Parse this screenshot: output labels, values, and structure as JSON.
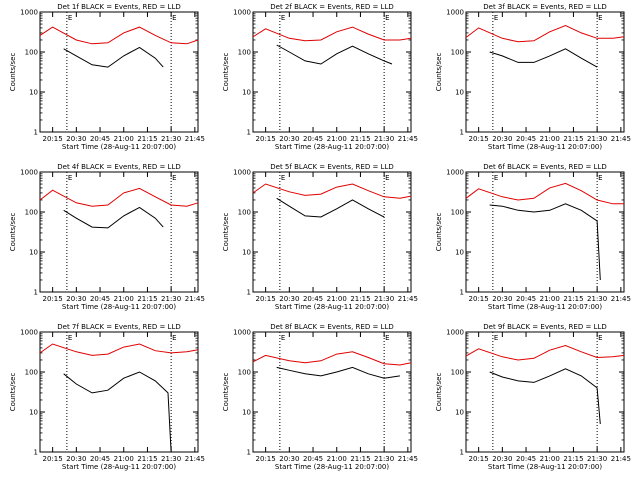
{
  "ylabel": "Counts/sec",
  "xlabel": "Start Time (28-Aug-11 20:07:00)",
  "x_ticks": [
    "20:15",
    "20:30",
    "20:45",
    "21:00",
    "21:15",
    "21:30",
    "21:45"
  ],
  "y_ticks": [
    "1",
    "10",
    "100",
    "1000"
  ],
  "marker_labels": [
    "E",
    "E"
  ],
  "colors": {
    "events": "#000000",
    "lld": "#e00000"
  },
  "chart_data": [
    {
      "type": "line",
      "title": "Det 1f BLACK = Events, RED = LLD",
      "xlim": [
        "20:07",
        "21:47"
      ],
      "ylim": [
        1,
        1000
      ],
      "yscale": "log",
      "vlines": [
        "20:24",
        "21:30"
      ],
      "series": [
        {
          "name": "Events",
          "x": [
            "20:22",
            "20:30",
            "20:40",
            "20:50",
            "21:00",
            "21:10",
            "21:20",
            "21:25"
          ],
          "values": [
            120,
            80,
            48,
            42,
            80,
            130,
            70,
            42
          ]
        },
        {
          "name": "LLD",
          "x": [
            "20:07",
            "20:15",
            "20:30",
            "20:40",
            "20:50",
            "21:00",
            "21:10",
            "21:20",
            "21:30",
            "21:40",
            "21:47"
          ],
          "values": [
            260,
            420,
            200,
            160,
            170,
            300,
            420,
            260,
            170,
            160,
            200
          ]
        }
      ]
    },
    {
      "type": "line",
      "title": "Det 2f BLACK = Events, RED = LLD",
      "xlim": [
        "20:07",
        "21:47"
      ],
      "ylim": [
        1,
        1000
      ],
      "yscale": "log",
      "vlines": [
        "20:24",
        "21:30"
      ],
      "series": [
        {
          "name": "Events",
          "x": [
            "20:22",
            "20:30",
            "20:40",
            "20:50",
            "21:00",
            "21:10",
            "21:20",
            "21:30",
            "21:35"
          ],
          "values": [
            150,
            100,
            60,
            50,
            90,
            140,
            90,
            60,
            50
          ]
        },
        {
          "name": "LLD",
          "x": [
            "20:07",
            "20:15",
            "20:30",
            "20:40",
            "20:50",
            "21:00",
            "21:10",
            "21:20",
            "21:30",
            "21:40",
            "21:47"
          ],
          "values": [
            240,
            380,
            220,
            190,
            200,
            320,
            420,
            280,
            200,
            200,
            220
          ]
        }
      ]
    },
    {
      "type": "line",
      "title": "Det 3f BLACK = Events, RED = LLD",
      "xlim": [
        "20:07",
        "21:47"
      ],
      "ylim": [
        1,
        1000
      ],
      "yscale": "log",
      "vlines": [
        "20:24",
        "21:30"
      ],
      "series": [
        {
          "name": "Events",
          "x": [
            "20:22",
            "20:30",
            "20:40",
            "20:50",
            "21:00",
            "21:10",
            "21:20",
            "21:30"
          ],
          "values": [
            100,
            80,
            55,
            55,
            80,
            120,
            70,
            42
          ]
        },
        {
          "name": "LLD",
          "x": [
            "20:07",
            "20:15",
            "20:30",
            "20:40",
            "20:50",
            "21:00",
            "21:10",
            "21:20",
            "21:30",
            "21:40",
            "21:47"
          ],
          "values": [
            230,
            400,
            220,
            180,
            190,
            320,
            460,
            300,
            220,
            220,
            240
          ]
        }
      ]
    },
    {
      "type": "line",
      "title": "Det 4f BLACK = Events, RED = LLD",
      "xlim": [
        "20:07",
        "21:47"
      ],
      "ylim": [
        1,
        1000
      ],
      "yscale": "log",
      "vlines": [
        "20:24",
        "21:30"
      ],
      "series": [
        {
          "name": "Events",
          "x": [
            "20:22",
            "20:30",
            "20:40",
            "20:50",
            "21:00",
            "21:10",
            "21:20",
            "21:25"
          ],
          "values": [
            110,
            70,
            42,
            40,
            80,
            130,
            70,
            42
          ]
        },
        {
          "name": "LLD",
          "x": [
            "20:07",
            "20:15",
            "20:30",
            "20:40",
            "20:50",
            "21:00",
            "21:10",
            "21:20",
            "21:30",
            "21:40",
            "21:47"
          ],
          "values": [
            200,
            350,
            170,
            140,
            150,
            300,
            390,
            240,
            150,
            140,
            170
          ]
        }
      ]
    },
    {
      "type": "line",
      "title": "Det 5f BLACK = Events, RED = LLD",
      "xlim": [
        "20:07",
        "21:47"
      ],
      "ylim": [
        1,
        1000
      ],
      "yscale": "log",
      "vlines": [
        "20:24",
        "21:30"
      ],
      "series": [
        {
          "name": "Events",
          "x": [
            "20:22",
            "20:30",
            "20:40",
            "20:50",
            "21:00",
            "21:10",
            "21:20",
            "21:30"
          ],
          "values": [
            220,
            140,
            80,
            75,
            120,
            200,
            120,
            75
          ]
        },
        {
          "name": "LLD",
          "x": [
            "20:07",
            "20:15",
            "20:30",
            "20:40",
            "20:50",
            "21:00",
            "21:10",
            "21:20",
            "21:30",
            "21:40",
            "21:47"
          ],
          "values": [
            300,
            500,
            320,
            260,
            280,
            420,
            500,
            340,
            240,
            220,
            250
          ]
        }
      ]
    },
    {
      "type": "line",
      "title": "Det 6f BLACK = Events, RED = LLD",
      "xlim": [
        "20:07",
        "21:47"
      ],
      "ylim": [
        1,
        1000
      ],
      "yscale": "log",
      "vlines": [
        "20:24",
        "21:30"
      ],
      "series": [
        {
          "name": "Events",
          "x": [
            "20:22",
            "20:30",
            "20:40",
            "20:50",
            "21:00",
            "21:10",
            "21:20",
            "21:30",
            "21:32"
          ],
          "values": [
            150,
            140,
            110,
            100,
            110,
            160,
            110,
            60,
            2
          ]
        },
        {
          "name": "LLD",
          "x": [
            "20:07",
            "20:15",
            "20:30",
            "20:40",
            "20:50",
            "21:00",
            "21:10",
            "21:20",
            "21:30",
            "21:40",
            "21:47"
          ],
          "values": [
            220,
            380,
            240,
            200,
            220,
            400,
            520,
            340,
            200,
            160,
            160
          ]
        }
      ]
    },
    {
      "type": "line",
      "title": "Det 7f BLACK = Events, RED = LLD",
      "xlim": [
        "20:07",
        "21:47"
      ],
      "ylim": [
        1,
        1000
      ],
      "yscale": "log",
      "vlines": [
        "20:24",
        "21:30"
      ],
      "series": [
        {
          "name": "Events",
          "x": [
            "20:22",
            "20:30",
            "20:40",
            "20:50",
            "21:00",
            "21:10",
            "21:20",
            "21:28",
            "21:30"
          ],
          "values": [
            90,
            50,
            30,
            35,
            70,
            100,
            60,
            30,
            1
          ]
        },
        {
          "name": "LLD",
          "x": [
            "20:07",
            "20:15",
            "20:30",
            "20:40",
            "20:50",
            "21:00",
            "21:10",
            "21:20",
            "21:30",
            "21:40",
            "21:47"
          ],
          "values": [
            300,
            500,
            320,
            260,
            280,
            420,
            500,
            340,
            300,
            320,
            360
          ]
        }
      ]
    },
    {
      "type": "line",
      "title": "Det 8f BLACK = Events, RED = LLD",
      "xlim": [
        "20:07",
        "21:47"
      ],
      "ylim": [
        1,
        1000
      ],
      "yscale": "log",
      "vlines": [
        "20:24",
        "21:30"
      ],
      "series": [
        {
          "name": "Events",
          "x": [
            "20:22",
            "20:30",
            "20:40",
            "20:50",
            "21:00",
            "21:10",
            "21:20",
            "21:30",
            "21:40"
          ],
          "values": [
            130,
            110,
            90,
            80,
            100,
            130,
            90,
            70,
            80
          ]
        },
        {
          "name": "LLD",
          "x": [
            "20:07",
            "20:15",
            "20:30",
            "20:40",
            "20:50",
            "21:00",
            "21:10",
            "21:20",
            "21:30",
            "21:40",
            "21:47"
          ],
          "values": [
            180,
            260,
            190,
            170,
            190,
            280,
            320,
            230,
            160,
            150,
            170
          ]
        }
      ]
    },
    {
      "type": "line",
      "title": "Det 9f BLACK = Events, RED = LLD",
      "xlim": [
        "20:07",
        "21:47"
      ],
      "ylim": [
        1,
        1000
      ],
      "yscale": "log",
      "vlines": [
        "20:24",
        "21:30"
      ],
      "series": [
        {
          "name": "Events",
          "x": [
            "20:22",
            "20:30",
            "20:40",
            "20:50",
            "21:00",
            "21:10",
            "21:20",
            "21:30",
            "21:32"
          ],
          "values": [
            100,
            75,
            60,
            55,
            80,
            120,
            80,
            40,
            5
          ]
        },
        {
          "name": "LLD",
          "x": [
            "20:07",
            "20:15",
            "20:30",
            "20:40",
            "20:50",
            "21:00",
            "21:10",
            "21:20",
            "21:30",
            "21:40",
            "21:47"
          ],
          "values": [
            250,
            380,
            240,
            200,
            220,
            350,
            460,
            320,
            230,
            240,
            260
          ]
        }
      ]
    }
  ]
}
